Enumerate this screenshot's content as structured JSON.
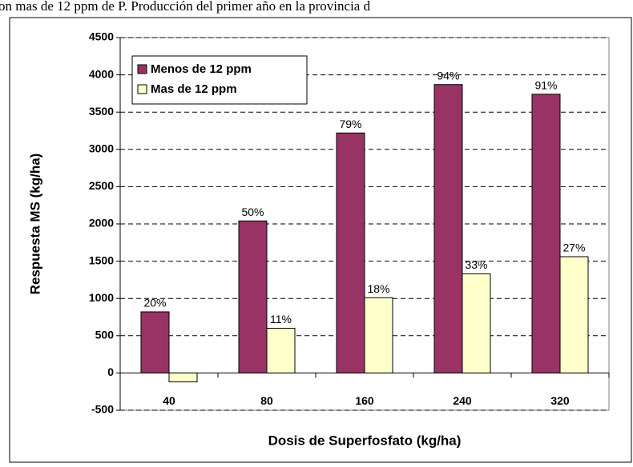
{
  "caption": "on mas de 12 ppm de P. Producción del primer año en la provincia d",
  "chart_data": {
    "type": "bar",
    "x_label": "Dosis de Superfosfato (kg/ha)",
    "y_label": "Respuesta MS (kg/ha)",
    "categories": [
      "40",
      "80",
      "160",
      "240",
      "320"
    ],
    "series": [
      {
        "name": "Menos de 12 ppm",
        "color": "#993366",
        "values": [
          820,
          2040,
          3220,
          3870,
          3740
        ],
        "annotations": [
          "20%",
          "50%",
          "79%",
          "94%",
          "91%"
        ]
      },
      {
        "name": "Mas de 12 ppm",
        "color": "#ffffcc",
        "values": [
          -120,
          600,
          1010,
          1330,
          1560
        ],
        "annotations": [
          null,
          "11%",
          "18%",
          "33%",
          "27%"
        ]
      }
    ],
    "ylim": [
      -500,
      4500
    ],
    "yticks": [
      -500,
      0,
      500,
      1000,
      1500,
      2000,
      2500,
      3000,
      3500,
      4000,
      4500
    ],
    "grid": true
  }
}
